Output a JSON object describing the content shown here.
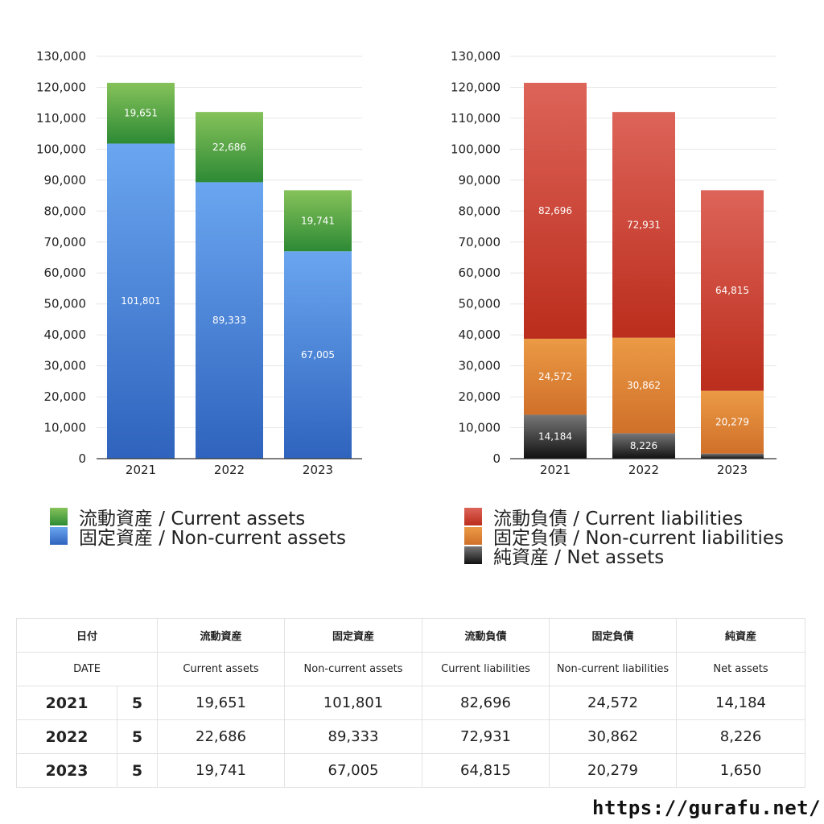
{
  "chart_data": [
    {
      "type": "bar",
      "stacked": true,
      "categories": [
        "2021",
        "2022",
        "2023"
      ],
      "yticks": [
        "0",
        "10,000",
        "20,000",
        "30,000",
        "40,000",
        "50,000",
        "60,000",
        "70,000",
        "80,000",
        "90,000",
        "100,000",
        "110,000",
        "120,000",
        "130,000"
      ],
      "ylim": [
        0,
        130000
      ],
      "grid": true,
      "series": [
        {
          "name": "固定資産 / Non-current assets",
          "values": [
            101801,
            89333,
            67005
          ],
          "labels": [
            "101,801",
            "89,333",
            "67,005"
          ],
          "color_top": "#6aa6f0",
          "color_bottom": "#2f63bd"
        },
        {
          "name": "流動資産 / Current assets",
          "values": [
            19651,
            22686,
            19741
          ],
          "labels": [
            "19,651",
            "22,686",
            "19,741"
          ],
          "color_top": "#86c25a",
          "color_bottom": "#2d8a35"
        }
      ],
      "legend": [
        {
          "label": "流動資産 / Current assets",
          "color_top": "#86c25a",
          "color_bottom": "#2d8a35"
        },
        {
          "label": "固定資産 / Non-current assets",
          "color_top": "#6aa6f0",
          "color_bottom": "#2f63bd"
        }
      ]
    },
    {
      "type": "bar",
      "stacked": true,
      "categories": [
        "2021",
        "2022",
        "2023"
      ],
      "yticks": [
        "0",
        "10,000",
        "20,000",
        "30,000",
        "40,000",
        "50,000",
        "60,000",
        "70,000",
        "80,000",
        "90,000",
        "100,000",
        "110,000",
        "120,000",
        "130,000"
      ],
      "ylim": [
        0,
        130000
      ],
      "grid": true,
      "series": [
        {
          "name": "純資産 / Net assets",
          "values": [
            14184,
            8226,
            1650
          ],
          "labels": [
            "14,184",
            "8,226",
            "1,650"
          ],
          "color_top": "#777777",
          "color_bottom": "#111111"
        },
        {
          "name": "固定負債 / Non-current liabilities",
          "values": [
            24572,
            30862,
            20279
          ],
          "labels": [
            "24,572",
            "30,862",
            "20,279"
          ],
          "color_top": "#eb9a45",
          "color_bottom": "#d0702a"
        },
        {
          "name": "流動負債 / Current liabilities",
          "values": [
            82696,
            72931,
            64815
          ],
          "labels": [
            "82,696",
            "72,931",
            "64,815"
          ],
          "color_top": "#dd6459",
          "color_bottom": "#bb2d1c"
        }
      ],
      "legend": [
        {
          "label": "流動負債 / Current liabilities",
          "color_top": "#dd6459",
          "color_bottom": "#bb2d1c"
        },
        {
          "label": "固定負債 / Non-current liabilities",
          "color_top": "#eb9a45",
          "color_bottom": "#d0702a"
        },
        {
          "label": "純資産 / Net assets",
          "color_top": "#777777",
          "color_bottom": "#111111"
        }
      ]
    }
  ],
  "table": {
    "header_jp": [
      "日付",
      "流動資産",
      "固定資産",
      "流動負債",
      "固定負債",
      "純資産"
    ],
    "header_en": [
      "DATE",
      "Current assets",
      "Non-current assets",
      "Current liabilities",
      "Non-current liabilities",
      "Net assets"
    ],
    "rows": [
      {
        "year": "2021",
        "count": "5",
        "values": [
          "19,651",
          "101,801",
          "82,696",
          "24,572",
          "14,184"
        ]
      },
      {
        "year": "2022",
        "count": "5",
        "values": [
          "22,686",
          "89,333",
          "72,931",
          "30,862",
          "8,226"
        ]
      },
      {
        "year": "2023",
        "count": "5",
        "values": [
          "19,741",
          "67,005",
          "64,815",
          "20,279",
          "1,650"
        ]
      }
    ]
  },
  "site_url": "https://gurafu.net/"
}
